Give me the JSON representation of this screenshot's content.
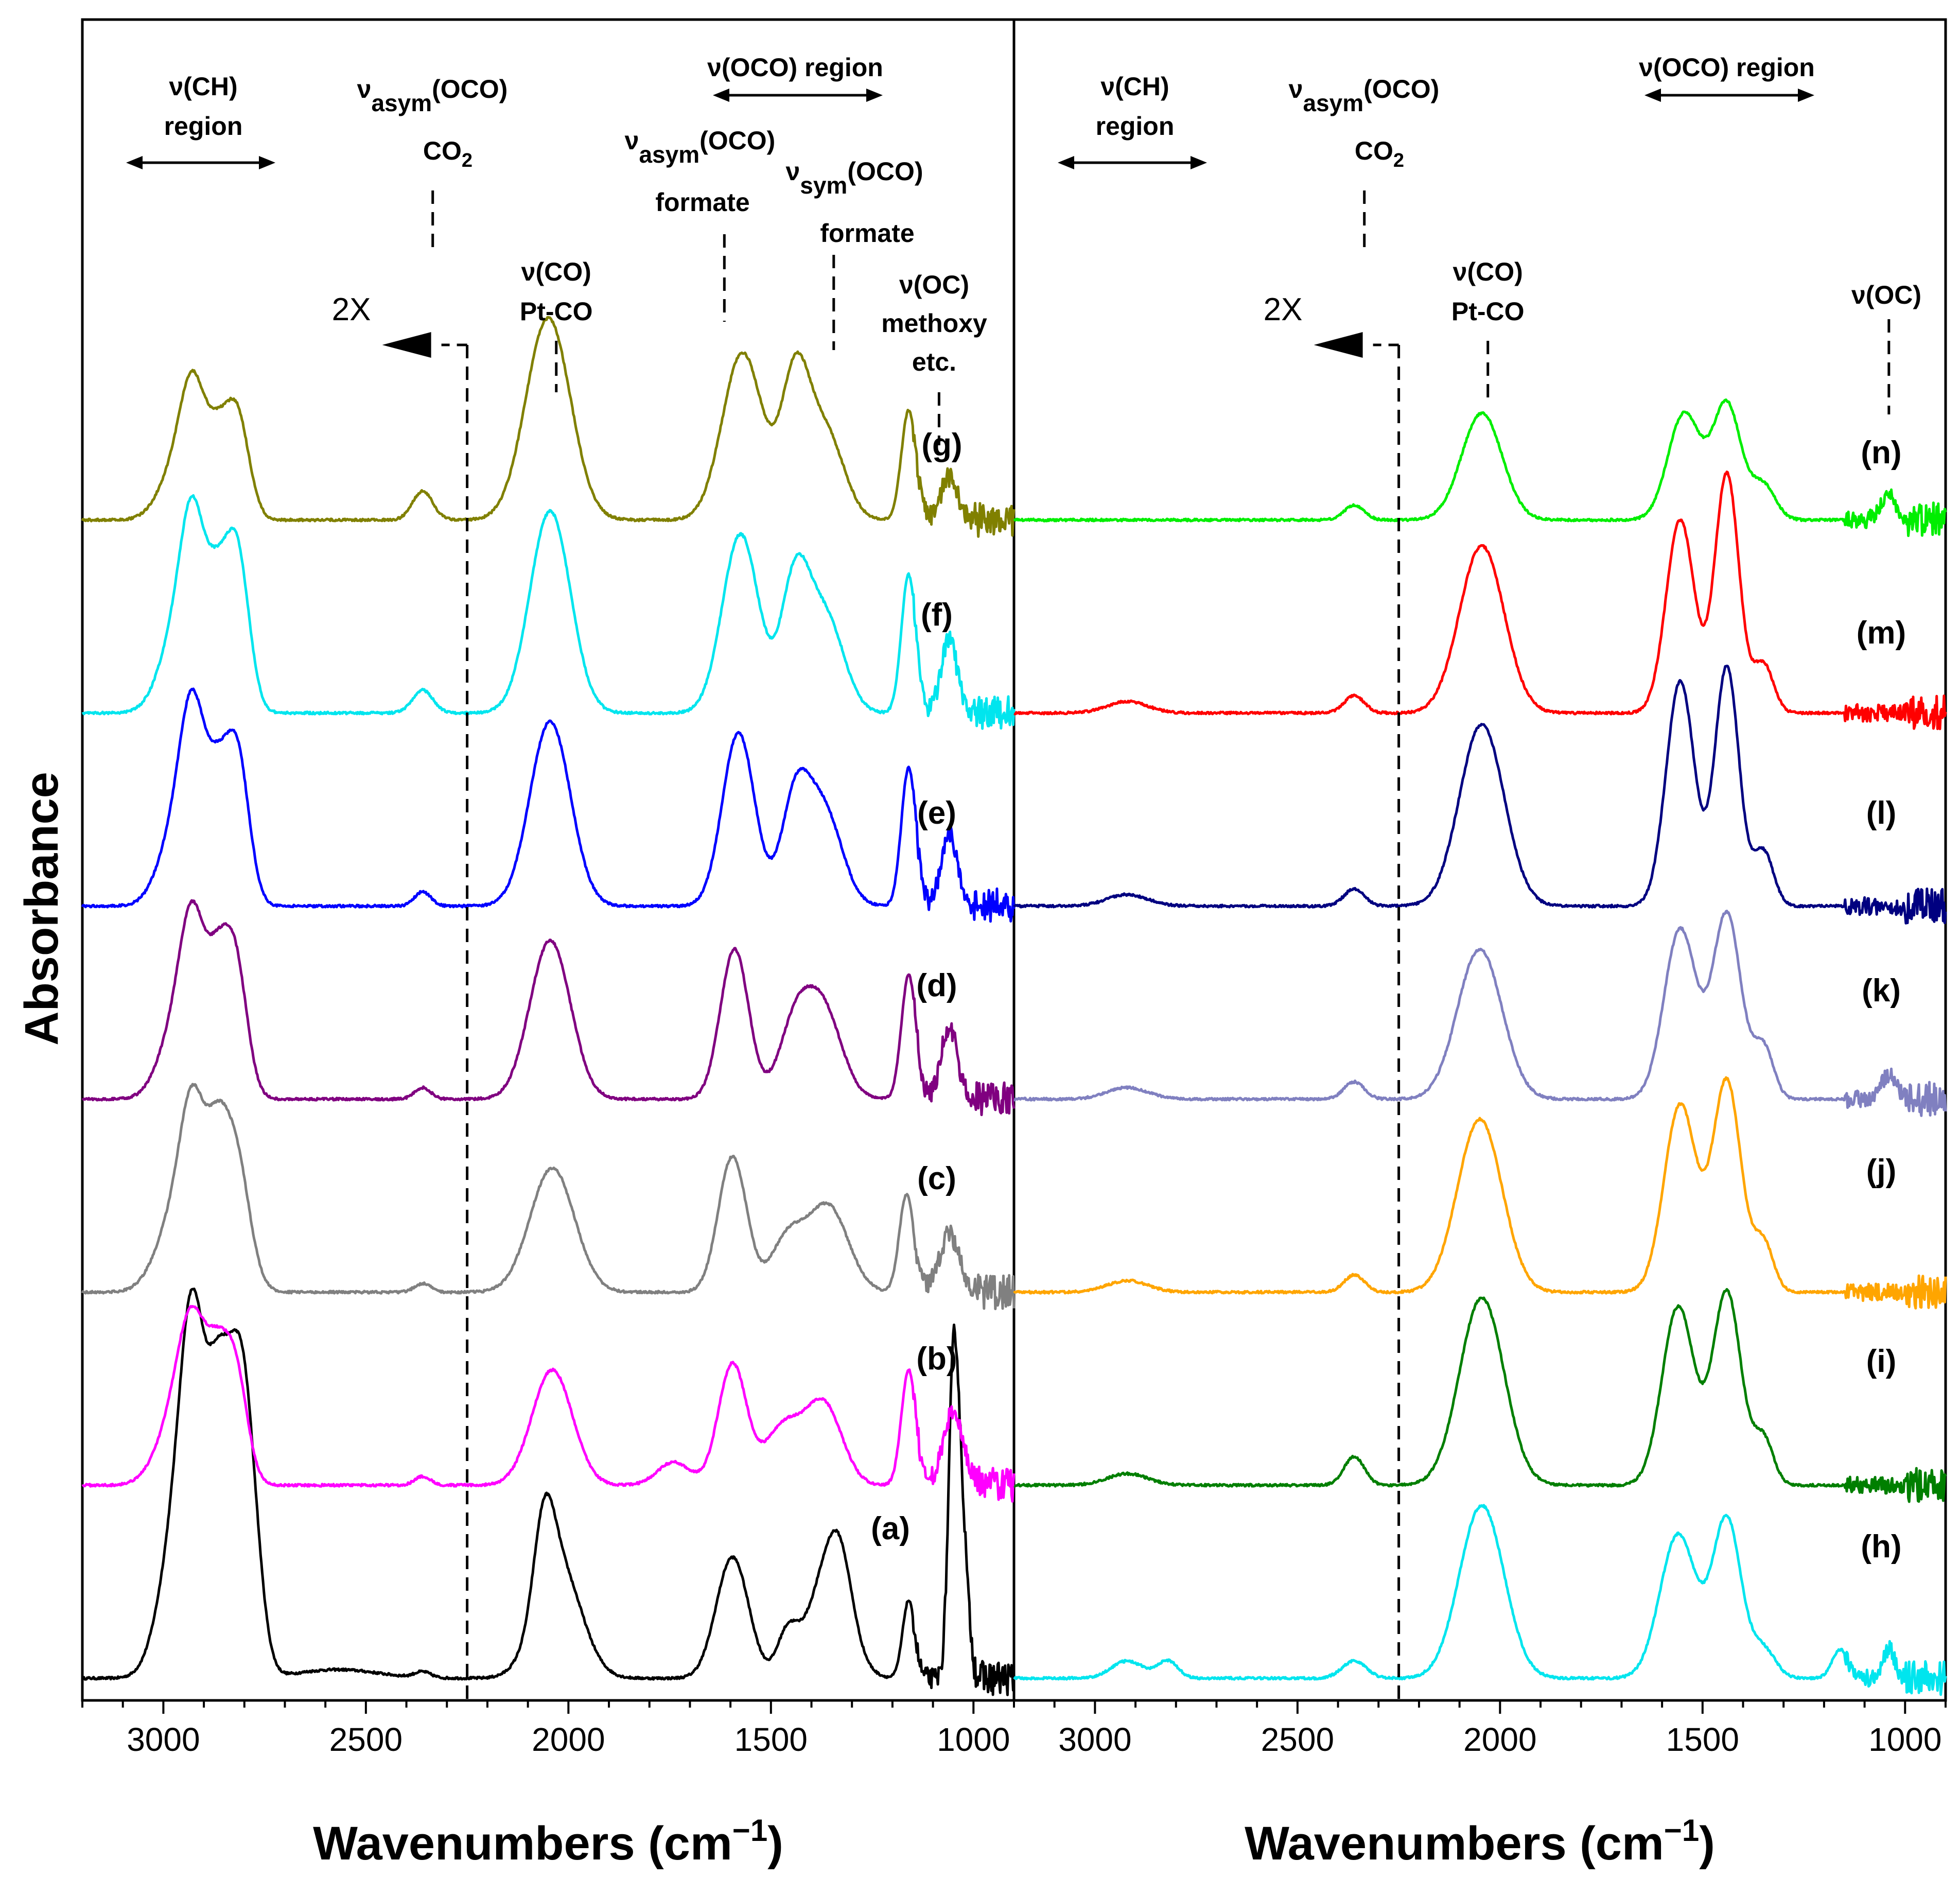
{
  "figure": {
    "ylabel": "Absorbance",
    "xlabel_main": "Wavenumbers (cm",
    "xlabel_sup": "−1",
    "xlabel_close": ")"
  },
  "chart_data": [
    {
      "type": "line",
      "panel": "left",
      "xlim": [
        3200,
        900
      ],
      "xticks": [
        3000,
        2500,
        2000,
        1500,
        1000
      ],
      "tick_labels": [
        "3000",
        "2500",
        "2000",
        "1500",
        "1000"
      ],
      "scale_marker": {
        "x": 2250,
        "label": "2X"
      },
      "series": [
        {
          "name": "(a)",
          "color": "#000000",
          "peaks": [
            [
              2960,
              0.55,
              45
            ],
            [
              2925,
              0.88,
              30
            ],
            [
              2870,
              0.55,
              25
            ],
            [
              2825,
              0.86,
              35
            ],
            [
              2790,
              0.45,
              30
            ],
            [
              2570,
              0.03,
              100
            ],
            [
              2360,
              0.02,
              20
            ],
            [
              2060,
              0.3,
              25
            ],
            [
              2025,
              0.4,
              55
            ],
            [
              1595,
              0.42,
              40
            ],
            [
              1460,
              0.14,
              25
            ],
            [
              1360,
              0.35,
              50
            ],
            [
              1330,
              0.2,
              30
            ],
            [
              1160,
              0.27,
              15
            ],
            [
              1050,
              0.94,
              12
            ],
            [
              1030,
              0.55,
              15
            ]
          ]
        },
        {
          "name": "(b)",
          "color": "#ff00ff",
          "peaks": [
            [
              2960,
              0.25,
              50
            ],
            [
              2925,
              0.4,
              35
            ],
            [
              2870,
              0.25,
              25
            ],
            [
              2825,
              0.42,
              30
            ],
            [
              2360,
              0.03,
              20
            ],
            [
              2040,
              0.4,
              50
            ],
            [
              1740,
              0.08,
              40
            ],
            [
              1595,
              0.42,
              35
            ],
            [
              1470,
              0.2,
              45
            ],
            [
              1370,
              0.28,
              45
            ],
            [
              1160,
              0.4,
              18
            ],
            [
              1050,
              0.25,
              25
            ]
          ]
        },
        {
          "name": "(c)",
          "color": "#808080",
          "peaks": [
            [
              2960,
              0.3,
              50
            ],
            [
              2925,
              0.45,
              30
            ],
            [
              2870,
              0.3,
              25
            ],
            [
              2825,
              0.5,
              35
            ],
            [
              2360,
              0.03,
              20
            ],
            [
              2040,
              0.43,
              55
            ],
            [
              1595,
              0.47,
              35
            ],
            [
              1460,
              0.18,
              40
            ],
            [
              1360,
              0.3,
              50
            ],
            [
              1165,
              0.34,
              18
            ],
            [
              1060,
              0.2,
              25
            ]
          ]
        },
        {
          "name": "(d)",
          "color": "#800080",
          "peaks": [
            [
              2960,
              0.28,
              45
            ],
            [
              2925,
              0.45,
              30
            ],
            [
              2870,
              0.3,
              25
            ],
            [
              2825,
              0.5,
              30
            ],
            [
              2360,
              0.04,
              20
            ],
            [
              2045,
              0.55,
              50
            ],
            [
              1590,
              0.52,
              35
            ],
            [
              1440,
              0.25,
              40
            ],
            [
              1370,
              0.3,
              45
            ],
            [
              1160,
              0.43,
              18
            ],
            [
              1060,
              0.25,
              20
            ]
          ]
        },
        {
          "name": "(e)",
          "color": "#0000ff",
          "peaks": [
            [
              2960,
              0.3,
              45
            ],
            [
              2925,
              0.5,
              30
            ],
            [
              2870,
              0.3,
              25
            ],
            [
              2820,
              0.55,
              30
            ],
            [
              2360,
              0.05,
              20
            ],
            [
              2045,
              0.64,
              50
            ],
            [
              1580,
              0.6,
              40
            ],
            [
              1440,
              0.35,
              35
            ],
            [
              1370,
              0.33,
              45
            ],
            [
              1160,
              0.48,
              18
            ],
            [
              1060,
              0.25,
              20
            ]
          ]
        },
        {
          "name": "(f)",
          "color": "#00e5ee",
          "peaks": [
            [
              2960,
              0.3,
              45
            ],
            [
              2925,
              0.5,
              30
            ],
            [
              2870,
              0.3,
              25
            ],
            [
              2820,
              0.58,
              30
            ],
            [
              2360,
              0.08,
              25
            ],
            [
              2045,
              0.7,
              50
            ],
            [
              1575,
              0.62,
              45
            ],
            [
              1440,
              0.45,
              35
            ],
            [
              1365,
              0.33,
              45
            ],
            [
              1160,
              0.48,
              18
            ],
            [
              1060,
              0.25,
              20
            ]
          ]
        },
        {
          "name": "(g)",
          "color": "#808000",
          "peaks": [
            [
              2960,
              0.2,
              45
            ],
            [
              2925,
              0.35,
              30
            ],
            [
              2870,
              0.2,
              25
            ],
            [
              2820,
              0.38,
              30
            ],
            [
              2360,
              0.1,
              25
            ],
            [
              2050,
              0.7,
              55
            ],
            [
              1570,
              0.58,
              50
            ],
            [
              1440,
              0.48,
              35
            ],
            [
              1365,
              0.3,
              45
            ],
            [
              1160,
              0.38,
              18
            ],
            [
              1060,
              0.15,
              20
            ]
          ]
        }
      ],
      "series_labels": [
        "(a)",
        "(b)",
        "(c)",
        "(d)",
        "(e)",
        "(f)",
        "(g)"
      ],
      "annotations": {
        "ch_region": [
          "ν(CH)",
          "region"
        ],
        "asym_co2": {
          "nu": "ν",
          "sub": "asym",
          "mode": "(OCO)",
          "species": "CO",
          "species_sub": "2"
        },
        "oco_region": "ν(OCO) region",
        "asym_formate": {
          "nu": "ν",
          "sub": "asym",
          "mode": "(OCO)",
          "species": "formate"
        },
        "sym_formate": {
          "nu": "ν",
          "sub": "sym",
          "mode": "(OCO)",
          "species": "formate"
        },
        "co": [
          "ν(CO)",
          "Pt-CO"
        ],
        "oc": [
          "ν(OC)",
          "methoxy",
          "etc."
        ]
      }
    },
    {
      "type": "line",
      "panel": "right",
      "xlim": [
        3200,
        900
      ],
      "xticks": [
        3000,
        2500,
        2000,
        1500,
        1000
      ],
      "tick_labels": [
        "3000",
        "2500",
        "2000",
        "1500",
        "1000"
      ],
      "scale_marker": {
        "x": 2250,
        "label": "2X"
      },
      "series": [
        {
          "name": "(h)",
          "color": "#00e5ee",
          "peaks": [
            [
              2920,
              0.06,
              40
            ],
            [
              2820,
              0.06,
              25
            ],
            [
              2360,
              0.06,
              30
            ],
            [
              2045,
              0.6,
              55
            ],
            [
              1560,
              0.5,
              45
            ],
            [
              1440,
              0.55,
              35
            ],
            [
              1350,
              0.1,
              30
            ],
            [
              1160,
              0.1,
              20
            ],
            [
              1040,
              0.1,
              15
            ]
          ]
        },
        {
          "name": "(i)",
          "color": "#007f00",
          "peaks": [
            [
              2920,
              0.04,
              50
            ],
            [
              2360,
              0.1,
              25
            ],
            [
              2045,
              0.65,
              55
            ],
            [
              1560,
              0.62,
              40
            ],
            [
              1440,
              0.67,
              35
            ],
            [
              1350,
              0.16,
              25
            ]
          ]
        },
        {
          "name": "(j)",
          "color": "#ffa500",
          "peaks": [
            [
              2920,
              0.04,
              50
            ],
            [
              2360,
              0.06,
              25
            ],
            [
              2050,
              0.6,
              55
            ],
            [
              1555,
              0.65,
              40
            ],
            [
              1440,
              0.73,
              35
            ],
            [
              1350,
              0.17,
              25
            ]
          ]
        },
        {
          "name": "(k)",
          "color": "#8080c0",
          "peaks": [
            [
              2920,
              0.04,
              50
            ],
            [
              2360,
              0.06,
              25
            ],
            [
              2050,
              0.52,
              55
            ],
            [
              1555,
              0.59,
              40
            ],
            [
              1440,
              0.64,
              35
            ],
            [
              1350,
              0.18,
              25
            ],
            [
              1040,
              0.08,
              20
            ]
          ]
        },
        {
          "name": "(l)",
          "color": "#000080",
          "peaks": [
            [
              2920,
              0.04,
              50
            ],
            [
              2360,
              0.06,
              25
            ],
            [
              2045,
              0.63,
              55
            ],
            [
              1555,
              0.78,
              35
            ],
            [
              1440,
              0.83,
              30
            ],
            [
              1350,
              0.19,
              25
            ]
          ]
        },
        {
          "name": "(m)",
          "color": "#ff0000",
          "peaks": [
            [
              2920,
              0.04,
              50
            ],
            [
              2360,
              0.06,
              25
            ],
            [
              2045,
              0.58,
              55
            ],
            [
              1555,
              0.67,
              35
            ],
            [
              1440,
              0.83,
              30
            ],
            [
              1350,
              0.17,
              25
            ]
          ]
        },
        {
          "name": "(n)",
          "color": "#00ee00",
          "peaks": [
            [
              2360,
              0.05,
              25
            ],
            [
              2045,
              0.37,
              50
            ],
            [
              1545,
              0.37,
              40
            ],
            [
              1440,
              0.4,
              35
            ],
            [
              1350,
              0.12,
              30
            ],
            [
              1040,
              0.08,
              20
            ]
          ]
        }
      ],
      "series_labels": [
        "(h)",
        "(i)",
        "(j)",
        "(k)",
        "(l)",
        "(m)",
        "(n)"
      ],
      "annotations": {
        "ch_region": [
          "ν(CH)",
          "region"
        ],
        "asym_co2": {
          "nu": "ν",
          "sub": "asym",
          "mode": "(OCO)",
          "species": "CO",
          "species_sub": "2"
        },
        "oco_region": "ν(OCO) region",
        "co": [
          "ν(CO)",
          "Pt-CO"
        ],
        "oc": [
          "ν(OC)"
        ]
      }
    }
  ]
}
